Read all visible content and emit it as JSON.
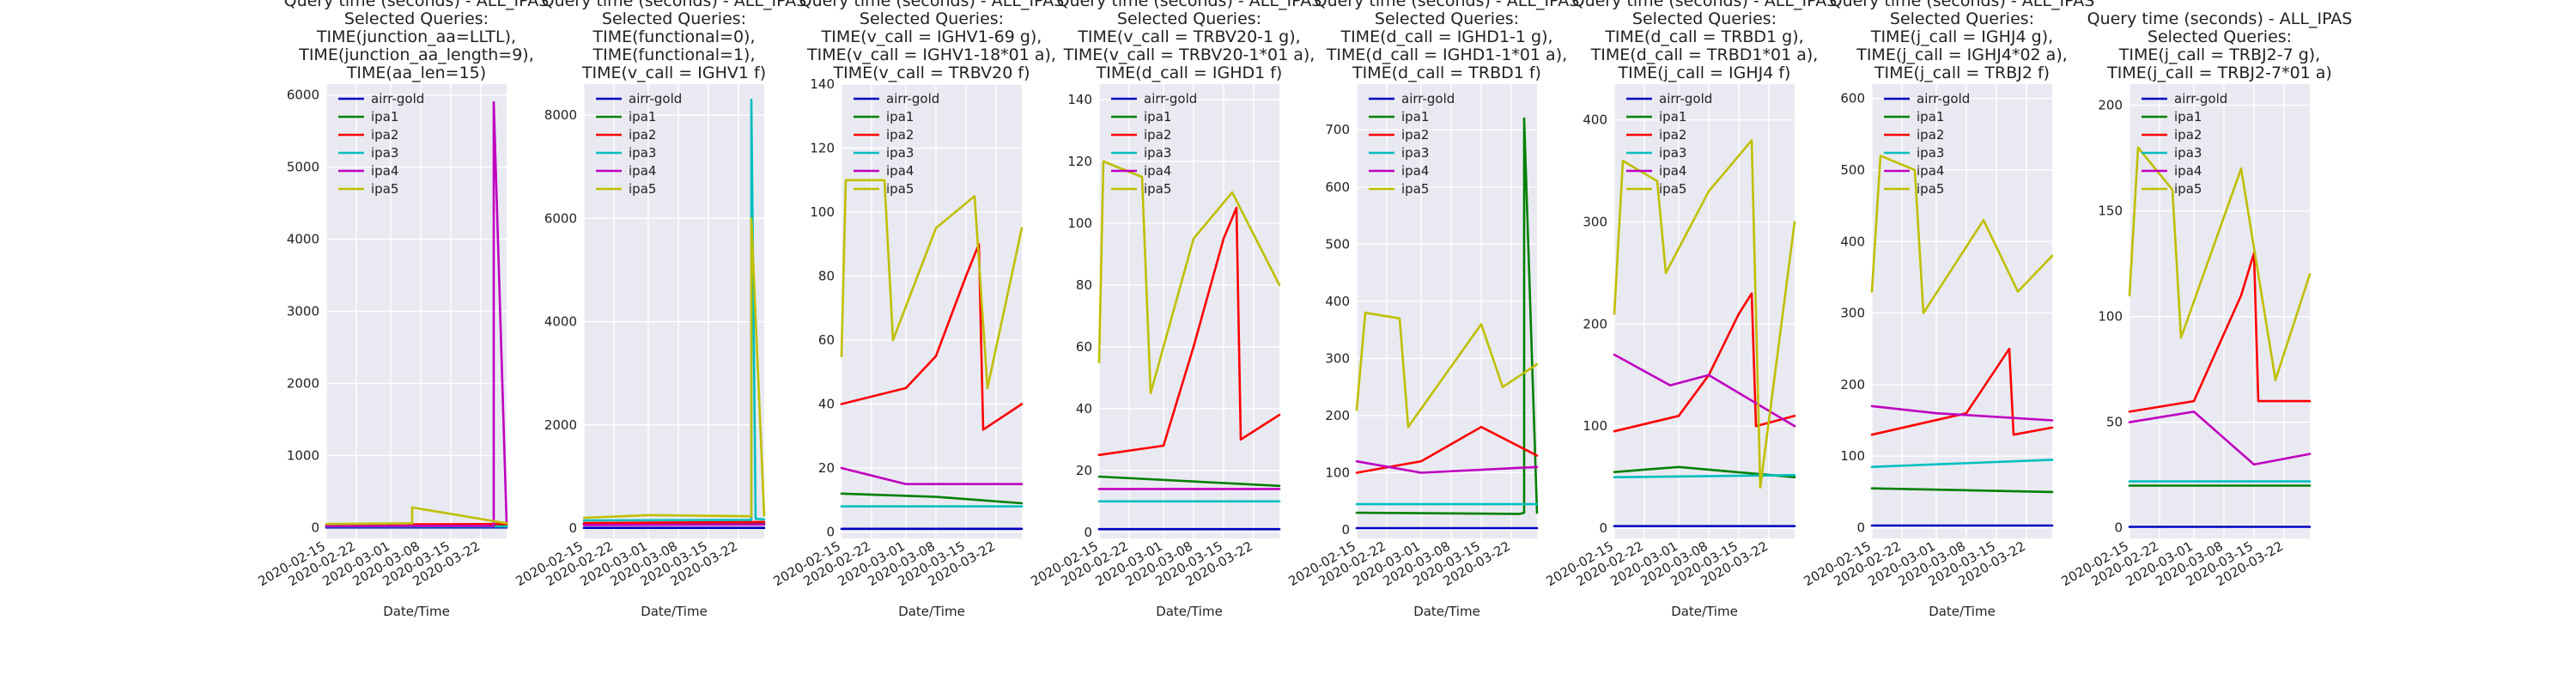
{
  "figure": {
    "background": "#ffffff",
    "axes_background": "#e9e9f2",
    "grid_color": "#ffffff"
  },
  "series_styles": [
    {
      "name": "airr-gold",
      "color": "#0000bf"
    },
    {
      "name": "ipa1",
      "color": "#008000"
    },
    {
      "name": "ipa2",
      "color": "#ff0000"
    },
    {
      "name": "ipa3",
      "color": "#00bfbf"
    },
    {
      "name": "ipa4",
      "color": "#bf00bf"
    },
    {
      "name": "ipa5",
      "color": "#bfbf00"
    }
  ],
  "chart_data": [
    {
      "type": "line",
      "title": [
        "Query time (seconds) - ALL_IPAS",
        "Selected Queries:",
        "TIME(junction_aa=LLTL),",
        "TIME(junction_aa_length=9),",
        "TIME(aa_len=15)"
      ],
      "xlabel": "Date/Time",
      "x_start": "2020-02-15",
      "x_end": "2020-03-28",
      "xticks": [
        "2020-02-15",
        "2020-02-22",
        "2020-03-01",
        "2020-03-08",
        "2020-03-15",
        "2020-03-22"
      ],
      "ylim": [
        -150,
        6150
      ],
      "yticks": [
        0,
        1000,
        2000,
        3000,
        4000,
        5000,
        6000
      ],
      "legend": "upper-left",
      "series": [
        {
          "name": "airr-gold",
          "x": [
            "2020-02-15",
            "2020-03-28"
          ],
          "y": [
            2,
            2
          ]
        },
        {
          "name": "ipa1",
          "x": [
            "2020-02-15",
            "2020-03-08",
            "2020-03-28"
          ],
          "y": [
            30,
            32,
            30
          ]
        },
        {
          "name": "ipa2",
          "x": [
            "2020-02-15",
            "2020-03-08",
            "2020-03-28"
          ],
          "y": [
            40,
            45,
            50
          ]
        },
        {
          "name": "ipa3",
          "x": [
            "2020-02-15",
            "2020-03-28"
          ],
          "y": [
            15,
            15
          ]
        },
        {
          "name": "ipa4",
          "x": [
            "2020-02-15",
            "2020-03-24",
            "2020-03-25",
            "2020-03-25",
            "2020-03-28"
          ],
          "y": [
            20,
            25,
            20,
            5900,
            60
          ]
        },
        {
          "name": "ipa5",
          "x": [
            "2020-02-15",
            "2020-03-05",
            "2020-03-06",
            "2020-03-06",
            "2020-03-28"
          ],
          "y": [
            50,
            60,
            60,
            280,
            60
          ]
        }
      ]
    },
    {
      "type": "line",
      "title": [
        "Query time (seconds) - ALL_IPAS",
        "Selected Queries:",
        "TIME(functional=0),",
        "TIME(functional=1),",
        "TIME(v_call = IGHV1 f)"
      ],
      "xlabel": "Date/Time",
      "x_start": "2020-02-15",
      "x_end": "2020-03-28",
      "xticks": [
        "2020-02-15",
        "2020-02-22",
        "2020-03-01",
        "2020-03-08",
        "2020-03-15",
        "2020-03-22"
      ],
      "ylim": [
        -200,
        8600
      ],
      "yticks": [
        0,
        2000,
        4000,
        6000,
        8000
      ],
      "legend": "upper-left",
      "series": [
        {
          "name": "airr-gold",
          "x": [
            "2020-02-15",
            "2020-03-28"
          ],
          "y": [
            5,
            5
          ]
        },
        {
          "name": "ipa1",
          "x": [
            "2020-02-15",
            "2020-03-28"
          ],
          "y": [
            80,
            90
          ]
        },
        {
          "name": "ipa2",
          "x": [
            "2020-02-15",
            "2020-03-28"
          ],
          "y": [
            100,
            120
          ]
        },
        {
          "name": "ipa3",
          "x": [
            "2020-02-15",
            "2020-03-25",
            "2020-03-25",
            "2020-03-26",
            "2020-03-28"
          ],
          "y": [
            150,
            160,
            8300,
            180,
            170
          ]
        },
        {
          "name": "ipa4",
          "x": [
            "2020-02-15",
            "2020-03-28"
          ],
          "y": [
            60,
            70
          ]
        },
        {
          "name": "ipa5",
          "x": [
            "2020-02-15",
            "2020-03-01",
            "2020-03-25",
            "2020-03-25",
            "2020-03-28"
          ],
          "y": [
            200,
            250,
            230,
            6000,
            240
          ]
        }
      ]
    },
    {
      "type": "line",
      "title": [
        "Query time (seconds) - ALL_IPAS",
        "Selected Queries:",
        "TIME(v_call = IGHV1-69 g),",
        "TIME(v_call = IGHV1-18*01 a),",
        "TIME(v_call = TRBV20 f)"
      ],
      "xlabel": "Date/Time",
      "x_start": "2020-02-15",
      "x_end": "2020-03-28",
      "xticks": [
        "2020-02-15",
        "2020-02-22",
        "2020-03-01",
        "2020-03-08",
        "2020-03-15",
        "2020-03-22"
      ],
      "ylim": [
        -2,
        140
      ],
      "yticks": [
        0,
        20,
        40,
        60,
        80,
        100,
        120,
        140
      ],
      "legend": "upper-left",
      "series": [
        {
          "name": "airr-gold",
          "x": [
            "2020-02-15",
            "2020-03-28"
          ],
          "y": [
            1,
            1
          ]
        },
        {
          "name": "ipa1",
          "x": [
            "2020-02-15",
            "2020-03-08",
            "2020-03-28"
          ],
          "y": [
            12,
            11,
            9
          ]
        },
        {
          "name": "ipa2",
          "x": [
            "2020-02-15",
            "2020-03-01",
            "2020-03-08",
            "2020-03-15",
            "2020-03-18",
            "2020-03-19",
            "2020-03-28"
          ],
          "y": [
            40,
            45,
            55,
            80,
            90,
            32,
            40
          ]
        },
        {
          "name": "ipa3",
          "x": [
            "2020-02-15",
            "2020-03-28"
          ],
          "y": [
            8,
            8
          ]
        },
        {
          "name": "ipa4",
          "x": [
            "2020-02-15",
            "2020-03-01",
            "2020-03-28"
          ],
          "y": [
            20,
            15,
            15
          ]
        },
        {
          "name": "ipa5",
          "x": [
            "2020-02-15",
            "2020-02-16",
            "2020-02-25",
            "2020-02-27",
            "2020-03-08",
            "2020-03-17",
            "2020-03-20",
            "2020-03-28"
          ],
          "y": [
            55,
            110,
            110,
            60,
            95,
            105,
            45,
            95
          ]
        }
      ]
    },
    {
      "type": "line",
      "title": [
        "Query time (seconds) - ALL_IPAS",
        "Selected Queries:",
        "TIME(v_call = TRBV20-1 g),",
        "TIME(v_call = TRBV20-1*01  a),",
        "TIME(d_call = IGHD1 f)"
      ],
      "xlabel": "Date/Time",
      "x_start": "2020-02-15",
      "x_end": "2020-03-28",
      "xticks": [
        "2020-02-15",
        "2020-02-22",
        "2020-03-01",
        "2020-03-08",
        "2020-03-15",
        "2020-03-22"
      ],
      "ylim": [
        -2,
        145
      ],
      "yticks": [
        0,
        20,
        40,
        60,
        80,
        100,
        120,
        140
      ],
      "legend": "upper-left",
      "series": [
        {
          "name": "airr-gold",
          "x": [
            "2020-02-15",
            "2020-03-28"
          ],
          "y": [
            1,
            1
          ]
        },
        {
          "name": "ipa1",
          "x": [
            "2020-02-15",
            "2020-03-28"
          ],
          "y": [
            18,
            15
          ]
        },
        {
          "name": "ipa2",
          "x": [
            "2020-02-15",
            "2020-03-01",
            "2020-03-08",
            "2020-03-15",
            "2020-03-18",
            "2020-03-19",
            "2020-03-28"
          ],
          "y": [
            25,
            28,
            60,
            95,
            105,
            30,
            38
          ]
        },
        {
          "name": "ipa3",
          "x": [
            "2020-02-15",
            "2020-03-28"
          ],
          "y": [
            10,
            10
          ]
        },
        {
          "name": "ipa4",
          "x": [
            "2020-02-15",
            "2020-03-28"
          ],
          "y": [
            14,
            14
          ]
        },
        {
          "name": "ipa5",
          "x": [
            "2020-02-15",
            "2020-02-16",
            "2020-02-25",
            "2020-02-27",
            "2020-03-08",
            "2020-03-17",
            "2020-03-28"
          ],
          "y": [
            55,
            120,
            115,
            45,
            95,
            110,
            80
          ]
        }
      ]
    },
    {
      "type": "line",
      "title": [
        "Query time (seconds) - ALL_IPAS",
        "Selected Queries:",
        "TIME(d_call = IGHD1-1 g),",
        "TIME(d_call = IGHD1-1*01 a),",
        "TIME(d_call = TRBD1 f)"
      ],
      "xlabel": "Date/Time",
      "x_start": "2020-02-15",
      "x_end": "2020-03-28",
      "xticks": [
        "2020-02-15",
        "2020-02-22",
        "2020-03-01",
        "2020-03-08",
        "2020-03-15",
        "2020-03-22"
      ],
      "ylim": [
        -15,
        780
      ],
      "yticks": [
        0,
        100,
        200,
        300,
        400,
        500,
        600,
        700
      ],
      "legend": "upper-left",
      "series": [
        {
          "name": "airr-gold",
          "x": [
            "2020-02-15",
            "2020-03-28"
          ],
          "y": [
            3,
            3
          ]
        },
        {
          "name": "ipa1",
          "x": [
            "2020-02-15",
            "2020-03-24",
            "2020-03-25",
            "2020-03-25",
            "2020-03-28"
          ],
          "y": [
            30,
            28,
            30,
            720,
            30
          ]
        },
        {
          "name": "ipa2",
          "x": [
            "2020-02-15",
            "2020-03-01",
            "2020-03-15",
            "2020-03-28"
          ],
          "y": [
            100,
            120,
            180,
            130
          ]
        },
        {
          "name": "ipa3",
          "x": [
            "2020-02-15",
            "2020-03-28"
          ],
          "y": [
            45,
            45
          ]
        },
        {
          "name": "ipa4",
          "x": [
            "2020-02-15",
            "2020-03-01",
            "2020-03-28"
          ],
          "y": [
            120,
            100,
            110
          ]
        },
        {
          "name": "ipa5",
          "x": [
            "2020-02-15",
            "2020-02-17",
            "2020-02-25",
            "2020-02-27",
            "2020-03-15",
            "2020-03-20",
            "2020-03-28"
          ],
          "y": [
            210,
            380,
            370,
            180,
            360,
            250,
            290
          ]
        }
      ]
    },
    {
      "type": "line",
      "title": [
        "Query time (seconds) - ALL_IPAS",
        "Selected Queries:",
        "TIME(d_call = TRBD1 g),",
        "TIME(d_call = TRBD1*01 a),",
        "TIME(j_call = IGHJ4 f)"
      ],
      "xlabel": "Date/Time",
      "x_start": "2020-02-15",
      "x_end": "2020-03-28",
      "xticks": [
        "2020-02-15",
        "2020-02-22",
        "2020-03-01",
        "2020-03-08",
        "2020-03-15",
        "2020-03-22"
      ],
      "ylim": [
        -10,
        435
      ],
      "yticks": [
        0,
        100,
        200,
        300,
        400
      ],
      "legend": "upper-left",
      "series": [
        {
          "name": "airr-gold",
          "x": [
            "2020-02-15",
            "2020-03-28"
          ],
          "y": [
            2,
            2
          ]
        },
        {
          "name": "ipa1",
          "x": [
            "2020-02-15",
            "2020-03-01",
            "2020-03-28"
          ],
          "y": [
            55,
            60,
            50
          ]
        },
        {
          "name": "ipa2",
          "x": [
            "2020-02-15",
            "2020-03-01",
            "2020-03-08",
            "2020-03-15",
            "2020-03-18",
            "2020-03-19",
            "2020-03-28"
          ],
          "y": [
            95,
            110,
            150,
            210,
            230,
            100,
            110
          ]
        },
        {
          "name": "ipa3",
          "x": [
            "2020-02-15",
            "2020-03-28"
          ],
          "y": [
            50,
            52
          ]
        },
        {
          "name": "ipa4",
          "x": [
            "2020-02-15",
            "2020-02-28",
            "2020-03-08",
            "2020-03-28"
          ],
          "y": [
            170,
            140,
            150,
            100
          ]
        },
        {
          "name": "ipa5",
          "x": [
            "2020-02-15",
            "2020-02-17",
            "2020-02-25",
            "2020-02-27",
            "2020-03-08",
            "2020-03-18",
            "2020-03-20",
            "2020-03-28"
          ],
          "y": [
            210,
            360,
            340,
            250,
            330,
            380,
            40,
            300
          ]
        }
      ]
    },
    {
      "type": "line",
      "title": [
        "Query time (seconds) - ALL_IPAS",
        "Selected Queries:",
        "TIME(j_call = IGHJ4 g),",
        "TIME(j_call = IGHJ4*02 a),",
        "TIME(j_call = TRBJ2 f)"
      ],
      "xlabel": "Date/Time",
      "x_start": "2020-02-15",
      "x_end": "2020-03-28",
      "xticks": [
        "2020-02-15",
        "2020-02-22",
        "2020-03-01",
        "2020-03-08",
        "2020-03-15",
        "2020-03-22"
      ],
      "ylim": [
        -15,
        620
      ],
      "yticks": [
        0,
        100,
        200,
        300,
        400,
        500,
        600
      ],
      "legend": "upper-left",
      "series": [
        {
          "name": "airr-gold",
          "x": [
            "2020-02-15",
            "2020-03-28"
          ],
          "y": [
            3,
            3
          ]
        },
        {
          "name": "ipa1",
          "x": [
            "2020-02-15",
            "2020-03-28"
          ],
          "y": [
            55,
            50
          ]
        },
        {
          "name": "ipa2",
          "x": [
            "2020-02-15",
            "2020-03-08",
            "2020-03-18",
            "2020-03-19",
            "2020-03-28"
          ],
          "y": [
            130,
            160,
            250,
            130,
            140
          ]
        },
        {
          "name": "ipa3",
          "x": [
            "2020-02-15",
            "2020-03-28"
          ],
          "y": [
            85,
            95
          ]
        },
        {
          "name": "ipa4",
          "x": [
            "2020-02-15",
            "2020-03-01",
            "2020-03-28"
          ],
          "y": [
            170,
            160,
            150
          ]
        },
        {
          "name": "ipa5",
          "x": [
            "2020-02-15",
            "2020-02-17",
            "2020-02-25",
            "2020-02-27",
            "2020-03-12",
            "2020-03-20",
            "2020-03-28"
          ],
          "y": [
            330,
            520,
            500,
            300,
            430,
            330,
            380
          ]
        }
      ]
    },
    {
      "type": "line",
      "title": [
        "Query time (seconds) - ALL_IPAS",
        "Selected Queries:",
        "TIME(j_call = TRBJ2-7 g),",
        "TIME(j_call = TRBJ2-7*01 a)"
      ],
      "xlabel": "",
      "x_start": "2020-02-15",
      "x_end": "2020-03-28",
      "xticks": [
        "2020-02-15",
        "2020-02-22",
        "2020-03-01",
        "2020-03-08",
        "2020-03-15",
        "2020-03-22"
      ],
      "ylim": [
        -5,
        210
      ],
      "yticks": [
        0,
        50,
        100,
        150,
        200
      ],
      "legend": "upper-left",
      "series": [
        {
          "name": "airr-gold",
          "x": [
            "2020-02-15",
            "2020-03-28"
          ],
          "y": [
            0.5,
            0.5
          ]
        },
        {
          "name": "ipa1",
          "x": [
            "2020-02-15",
            "2020-03-28"
          ],
          "y": [
            20,
            20
          ]
        },
        {
          "name": "ipa2",
          "x": [
            "2020-02-15",
            "2020-03-01",
            "2020-03-12",
            "2020-03-15",
            "2020-03-16",
            "2020-03-28"
          ],
          "y": [
            55,
            60,
            110,
            130,
            60,
            60
          ]
        },
        {
          "name": "ipa3",
          "x": [
            "2020-02-15",
            "2020-03-28"
          ],
          "y": [
            22,
            22
          ]
        },
        {
          "name": "ipa4",
          "x": [
            "2020-02-15",
            "2020-03-01",
            "2020-03-15",
            "2020-03-28"
          ],
          "y": [
            50,
            55,
            30,
            35
          ]
        },
        {
          "name": "ipa5",
          "x": [
            "2020-02-15",
            "2020-02-17",
            "2020-02-25",
            "2020-02-27",
            "2020-03-12",
            "2020-03-20",
            "2020-03-28"
          ],
          "y": [
            110,
            180,
            160,
            90,
            170,
            70,
            120
          ]
        }
      ]
    }
  ]
}
